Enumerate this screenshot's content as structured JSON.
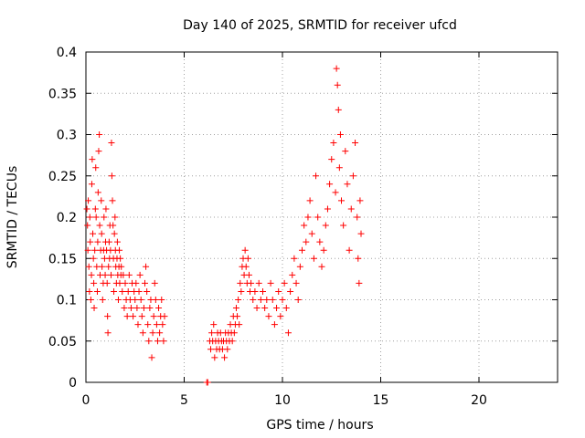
{
  "chart_data": {
    "type": "scatter",
    "title": "Day 140 of 2025, SRMTID for receiver ufcd",
    "xlabel": "GPS time / hours",
    "ylabel": "SRMTID / TECUs",
    "xlim": [
      0,
      24
    ],
    "ylim": [
      0,
      0.4
    ],
    "xticks": [
      0,
      5,
      10,
      15,
      20
    ],
    "xtick_labels": [
      "0",
      "5",
      "10",
      "15",
      "20"
    ],
    "yticks": [
      0,
      0.05,
      0.1,
      0.15,
      0.2,
      0.25,
      0.3,
      0.35,
      0.4
    ],
    "ytick_labels": [
      "0",
      "0.05",
      "0.1",
      "0.15",
      "0.2",
      "0.25",
      "0.3",
      "0.35",
      "0.4"
    ],
    "grid": true,
    "marker": "+",
    "marker_color": "#ff0000",
    "grid_color": "#a0a0a0",
    "series": [
      {
        "name": "SRMTID",
        "points": [
          [
            0.05,
            0.21
          ],
          [
            0.08,
            0.19
          ],
          [
            0.1,
            0.16
          ],
          [
            0.12,
            0.22
          ],
          [
            0.15,
            0.14
          ],
          [
            0.18,
            0.11
          ],
          [
            0.2,
            0.2
          ],
          [
            0.22,
            0.17
          ],
          [
            0.25,
            0.1
          ],
          [
            0.28,
            0.13
          ],
          [
            0.3,
            0.24
          ],
          [
            0.32,
            0.27
          ],
          [
            0.35,
            0.18
          ],
          [
            0.38,
            0.15
          ],
          [
            0.4,
            0.12
          ],
          [
            0.42,
            0.09
          ],
          [
            0.45,
            0.16
          ],
          [
            0.48,
            0.21
          ],
          [
            0.5,
            0.26
          ],
          [
            0.52,
            0.2
          ],
          [
            0.55,
            0.14
          ],
          [
            0.58,
            0.11
          ],
          [
            0.6,
            0.17
          ],
          [
            0.62,
            0.23
          ],
          [
            0.65,
            0.28
          ],
          [
            0.68,
            0.3
          ],
          [
            0.7,
            0.19
          ],
          [
            0.72,
            0.13
          ],
          [
            0.75,
            0.16
          ],
          [
            0.78,
            0.22
          ],
          [
            0.8,
            0.18
          ],
          [
            0.82,
            0.14
          ],
          [
            0.85,
            0.1
          ],
          [
            0.88,
            0.12
          ],
          [
            0.9,
            0.16
          ],
          [
            0.92,
            0.2
          ],
          [
            0.95,
            0.15
          ],
          [
            0.98,
            0.13
          ],
          [
            1.0,
            0.17
          ],
          [
            1.02,
            0.21
          ],
          [
            1.05,
            0.16
          ],
          [
            1.08,
            0.12
          ],
          [
            1.1,
            0.08
          ],
          [
            1.12,
            0.06
          ],
          [
            1.15,
            0.14
          ],
          [
            1.18,
            0.17
          ],
          [
            1.2,
            0.15
          ],
          [
            1.22,
            0.19
          ],
          [
            1.25,
            0.16
          ],
          [
            1.28,
            0.13
          ],
          [
            1.3,
            0.29
          ],
          [
            1.32,
            0.25
          ],
          [
            1.35,
            0.22
          ],
          [
            1.38,
            0.19
          ],
          [
            1.4,
            0.15
          ],
          [
            1.42,
            0.11
          ],
          [
            1.45,
            0.18
          ],
          [
            1.48,
            0.2
          ],
          [
            1.5,
            0.16
          ],
          [
            1.52,
            0.14
          ],
          [
            1.55,
            0.12
          ],
          [
            1.58,
            0.15
          ],
          [
            1.6,
            0.17
          ],
          [
            1.62,
            0.13
          ],
          [
            1.65,
            0.1
          ],
          [
            1.68,
            0.14
          ],
          [
            1.7,
            0.16
          ],
          [
            1.72,
            0.12
          ],
          [
            1.75,
            0.15
          ],
          [
            1.78,
            0.13
          ],
          [
            1.8,
            0.14
          ],
          [
            1.85,
            0.11
          ],
          [
            1.9,
            0.13
          ],
          [
            1.95,
            0.09
          ],
          [
            2.0,
            0.12
          ],
          [
            2.05,
            0.1
          ],
          [
            2.1,
            0.08
          ],
          [
            2.15,
            0.11
          ],
          [
            2.2,
            0.13
          ],
          [
            2.25,
            0.1
          ],
          [
            2.3,
            0.09
          ],
          [
            2.35,
            0.12
          ],
          [
            2.4,
            0.08
          ],
          [
            2.45,
            0.11
          ],
          [
            2.5,
            0.1
          ],
          [
            2.55,
            0.12
          ],
          [
            2.6,
            0.09
          ],
          [
            2.65,
            0.07
          ],
          [
            2.7,
            0.11
          ],
          [
            2.75,
            0.13
          ],
          [
            2.8,
            0.1
          ],
          [
            2.85,
            0.08
          ],
          [
            2.9,
            0.06
          ],
          [
            2.95,
            0.09
          ],
          [
            3.0,
            0.12
          ],
          [
            3.05,
            0.14
          ],
          [
            3.1,
            0.11
          ],
          [
            3.15,
            0.07
          ],
          [
            3.2,
            0.05
          ],
          [
            3.25,
            0.09
          ],
          [
            3.3,
            0.1
          ],
          [
            3.35,
            0.03
          ],
          [
            3.4,
            0.06
          ],
          [
            3.45,
            0.08
          ],
          [
            3.5,
            0.12
          ],
          [
            3.55,
            0.1
          ],
          [
            3.6,
            0.07
          ],
          [
            3.65,
            0.05
          ],
          [
            3.7,
            0.09
          ],
          [
            3.75,
            0.06
          ],
          [
            3.8,
            0.08
          ],
          [
            3.85,
            0.1
          ],
          [
            3.9,
            0.07
          ],
          [
            3.95,
            0.05
          ],
          [
            4.0,
            0.08
          ],
          [
            6.15,
            0.0
          ],
          [
            6.2,
            0.0
          ],
          [
            6.3,
            0.05
          ],
          [
            6.35,
            0.04
          ],
          [
            6.4,
            0.06
          ],
          [
            6.45,
            0.05
          ],
          [
            6.5,
            0.07
          ],
          [
            6.55,
            0.03
          ],
          [
            6.6,
            0.05
          ],
          [
            6.65,
            0.04
          ],
          [
            6.7,
            0.06
          ],
          [
            6.75,
            0.05
          ],
          [
            6.8,
            0.04
          ],
          [
            6.85,
            0.06
          ],
          [
            6.9,
            0.05
          ],
          [
            6.95,
            0.04
          ],
          [
            7.0,
            0.05
          ],
          [
            7.05,
            0.03
          ],
          [
            7.1,
            0.06
          ],
          [
            7.15,
            0.05
          ],
          [
            7.2,
            0.04
          ],
          [
            7.25,
            0.06
          ],
          [
            7.3,
            0.05
          ],
          [
            7.35,
            0.07
          ],
          [
            7.4,
            0.06
          ],
          [
            7.45,
            0.05
          ],
          [
            7.5,
            0.08
          ],
          [
            7.55,
            0.06
          ],
          [
            7.6,
            0.07
          ],
          [
            7.65,
            0.09
          ],
          [
            7.7,
            0.08
          ],
          [
            7.75,
            0.1
          ],
          [
            7.8,
            0.07
          ],
          [
            7.85,
            0.12
          ],
          [
            7.9,
            0.11
          ],
          [
            7.95,
            0.14
          ],
          [
            8.0,
            0.15
          ],
          [
            8.05,
            0.13
          ],
          [
            8.1,
            0.16
          ],
          [
            8.15,
            0.14
          ],
          [
            8.2,
            0.12
          ],
          [
            8.25,
            0.15
          ],
          [
            8.3,
            0.13
          ],
          [
            8.35,
            0.11
          ],
          [
            8.4,
            0.12
          ],
          [
            8.5,
            0.1
          ],
          [
            8.6,
            0.11
          ],
          [
            8.7,
            0.09
          ],
          [
            8.8,
            0.12
          ],
          [
            8.9,
            0.1
          ],
          [
            9.0,
            0.11
          ],
          [
            9.1,
            0.09
          ],
          [
            9.2,
            0.1
          ],
          [
            9.3,
            0.08
          ],
          [
            9.4,
            0.12
          ],
          [
            9.5,
            0.1
          ],
          [
            9.6,
            0.07
          ],
          [
            9.7,
            0.09
          ],
          [
            9.8,
            0.11
          ],
          [
            9.9,
            0.08
          ],
          [
            10.0,
            0.1
          ],
          [
            10.1,
            0.12
          ],
          [
            10.2,
            0.09
          ],
          [
            10.3,
            0.06
          ],
          [
            10.4,
            0.11
          ],
          [
            10.5,
            0.13
          ],
          [
            10.6,
            0.15
          ],
          [
            10.7,
            0.12
          ],
          [
            10.8,
            0.1
          ],
          [
            10.9,
            0.14
          ],
          [
            11.0,
            0.16
          ],
          [
            11.1,
            0.19
          ],
          [
            11.2,
            0.17
          ],
          [
            11.3,
            0.2
          ],
          [
            11.4,
            0.22
          ],
          [
            11.5,
            0.18
          ],
          [
            11.6,
            0.15
          ],
          [
            11.7,
            0.25
          ],
          [
            11.8,
            0.2
          ],
          [
            11.9,
            0.17
          ],
          [
            12.0,
            0.14
          ],
          [
            12.1,
            0.16
          ],
          [
            12.2,
            0.19
          ],
          [
            12.3,
            0.21
          ],
          [
            12.4,
            0.24
          ],
          [
            12.5,
            0.27
          ],
          [
            12.6,
            0.29
          ],
          [
            12.7,
            0.23
          ],
          [
            12.75,
            0.38
          ],
          [
            12.8,
            0.36
          ],
          [
            12.85,
            0.33
          ],
          [
            12.9,
            0.26
          ],
          [
            12.95,
            0.3
          ],
          [
            13.0,
            0.22
          ],
          [
            13.1,
            0.19
          ],
          [
            13.2,
            0.28
          ],
          [
            13.3,
            0.24
          ],
          [
            13.4,
            0.16
          ],
          [
            13.5,
            0.21
          ],
          [
            13.6,
            0.25
          ],
          [
            13.7,
            0.29
          ],
          [
            13.8,
            0.2
          ],
          [
            13.85,
            0.15
          ],
          [
            13.9,
            0.12
          ],
          [
            13.95,
            0.22
          ],
          [
            14.0,
            0.18
          ]
        ]
      }
    ]
  }
}
